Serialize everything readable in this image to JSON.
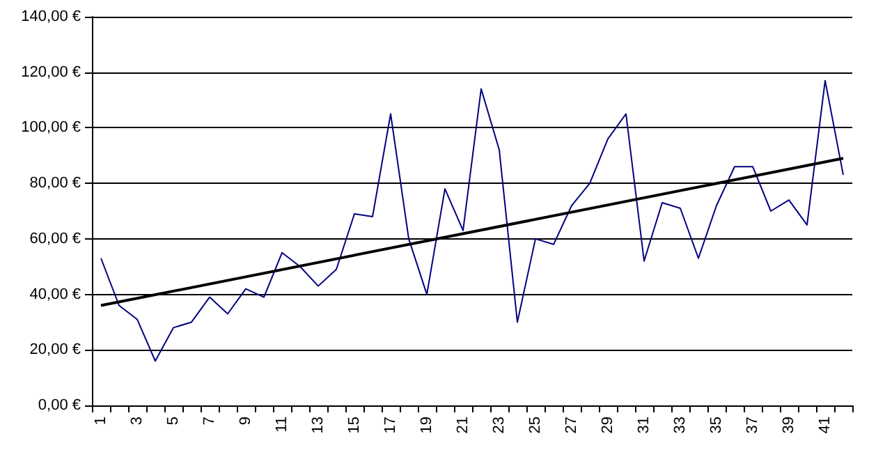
{
  "chart_data": {
    "type": "line",
    "categories": [
      "1",
      null,
      "3",
      null,
      "5",
      null,
      "7",
      null,
      "9",
      null,
      "11",
      null,
      "13",
      null,
      "15",
      null,
      "17",
      null,
      "19",
      null,
      "21",
      null,
      "23",
      null,
      "25",
      null,
      "27",
      null,
      "29",
      null,
      "31",
      null,
      "33",
      null,
      "35",
      null,
      "37",
      null,
      "39",
      null,
      "41",
      null
    ],
    "series": [
      {
        "color": "#000080",
        "values": [
          53,
          36,
          31,
          16,
          28,
          30,
          39,
          33,
          42,
          39,
          55,
          50,
          43,
          49,
          69,
          68,
          105,
          60,
          40,
          78,
          63,
          114,
          92,
          30,
          60,
          58,
          72,
          80,
          96,
          105,
          52,
          73,
          71,
          53,
          72,
          86,
          86,
          70,
          74,
          65,
          117,
          83
        ]
      },
      {
        "color": "#000000",
        "values": [
          36,
          null,
          null,
          null,
          null,
          null,
          null,
          null,
          null,
          null,
          null,
          null,
          null,
          null,
          null,
          null,
          null,
          null,
          null,
          null,
          null,
          null,
          null,
          null,
          null,
          null,
          null,
          null,
          null,
          null,
          null,
          null,
          null,
          null,
          null,
          null,
          null,
          null,
          null,
          null,
          null,
          89
        ]
      }
    ],
    "ylim": [
      0,
      140
    ],
    "yticks": [
      {
        "value": 0,
        "label": "0,00 €"
      },
      {
        "value": 20,
        "label": "20,00 €"
      },
      {
        "value": 40,
        "label": "40,00 €"
      },
      {
        "value": 60,
        "label": "60,00 €"
      },
      {
        "value": 80,
        "label": "80,00 €"
      },
      {
        "value": 100,
        "label": "100,00 €"
      },
      {
        "value": 120,
        "label": "120,00 €"
      },
      {
        "value": 140,
        "label": "140,00 €"
      }
    ],
    "grid": "y",
    "marker": "none"
  }
}
